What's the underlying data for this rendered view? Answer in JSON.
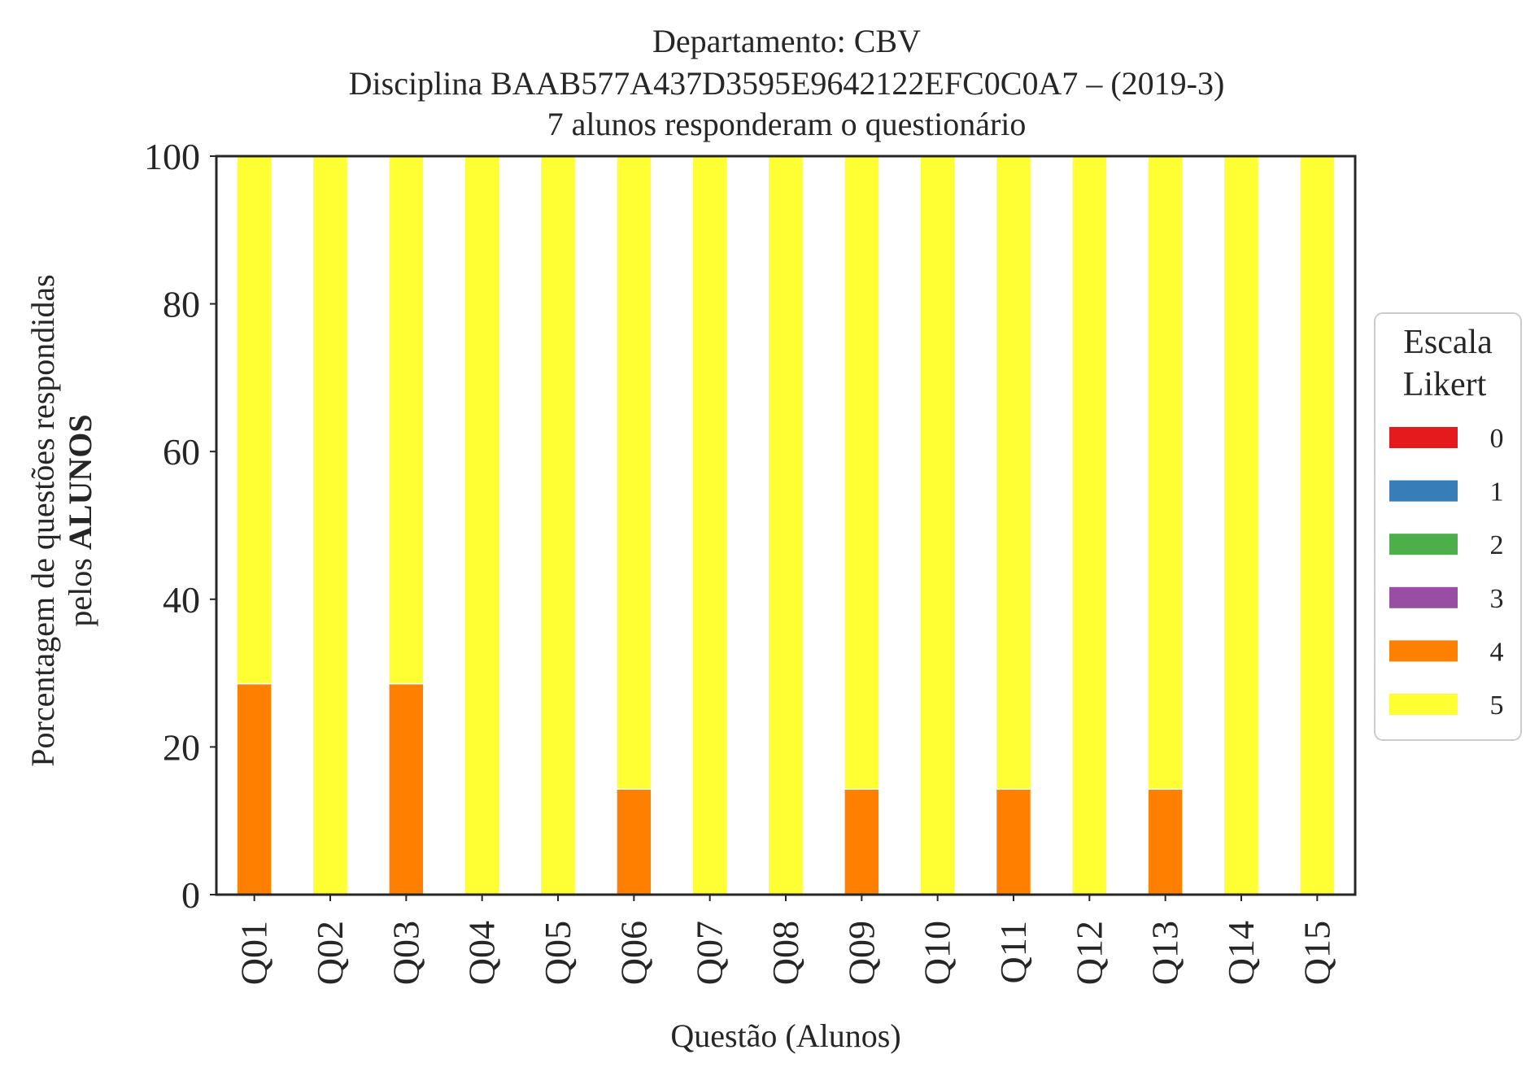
{
  "chart_data": {
    "type": "bar",
    "stacked": true,
    "title": [
      "Departamento: CBV",
      "Disciplina BAAB577A437D3595E9642122EFC0C0A7 – (2019-3)",
      "7 alunos responderam o questionário"
    ],
    "xlabel": "Questão (Alunos)",
    "ylabel_line1": "Porcentagem de questões respondidas",
    "ylabel_line2_prefix": "pelos ",
    "ylabel_line2_bold": "ALUNOS",
    "ylim": [
      0,
      100
    ],
    "yticks": [
      "0",
      "20",
      "40",
      "60",
      "80",
      "100"
    ],
    "grid": false,
    "categories": [
      "Q01",
      "Q02",
      "Q03",
      "Q04",
      "Q05",
      "Q06",
      "Q07",
      "Q08",
      "Q09",
      "Q10",
      "Q11",
      "Q12",
      "Q13",
      "Q14",
      "Q15"
    ],
    "series": [
      {
        "name": "0",
        "color": "#e41a1c",
        "values": [
          0,
          0,
          0,
          0,
          0,
          0,
          0,
          0,
          0,
          0,
          0,
          0,
          0,
          0,
          0
        ]
      },
      {
        "name": "1",
        "color": "#377eb8",
        "values": [
          0,
          0,
          0,
          0,
          0,
          0,
          0,
          0,
          0,
          0,
          0,
          0,
          0,
          0,
          0
        ]
      },
      {
        "name": "2",
        "color": "#4daf4a",
        "values": [
          0,
          0,
          0,
          0,
          0,
          0,
          0,
          0,
          0,
          0,
          0,
          0,
          0,
          0,
          0
        ]
      },
      {
        "name": "3",
        "color": "#984ea3",
        "values": [
          0,
          0,
          0,
          0,
          0,
          0,
          0,
          0,
          0,
          0,
          0,
          0,
          0,
          0,
          0
        ]
      },
      {
        "name": "4",
        "color": "#ff7f00",
        "values": [
          28.57,
          0,
          28.57,
          0,
          0,
          14.29,
          0,
          0,
          14.29,
          0,
          14.29,
          0,
          14.29,
          0,
          0
        ]
      },
      {
        "name": "5",
        "color": "#ffff33",
        "values": [
          71.43,
          100,
          71.43,
          100,
          100,
          85.71,
          100,
          100,
          85.71,
          100,
          85.71,
          100,
          85.71,
          100,
          100
        ]
      }
    ],
    "legend": {
      "title_line1": "Escala",
      "title_line2": "Likert",
      "placement": "right"
    }
  }
}
